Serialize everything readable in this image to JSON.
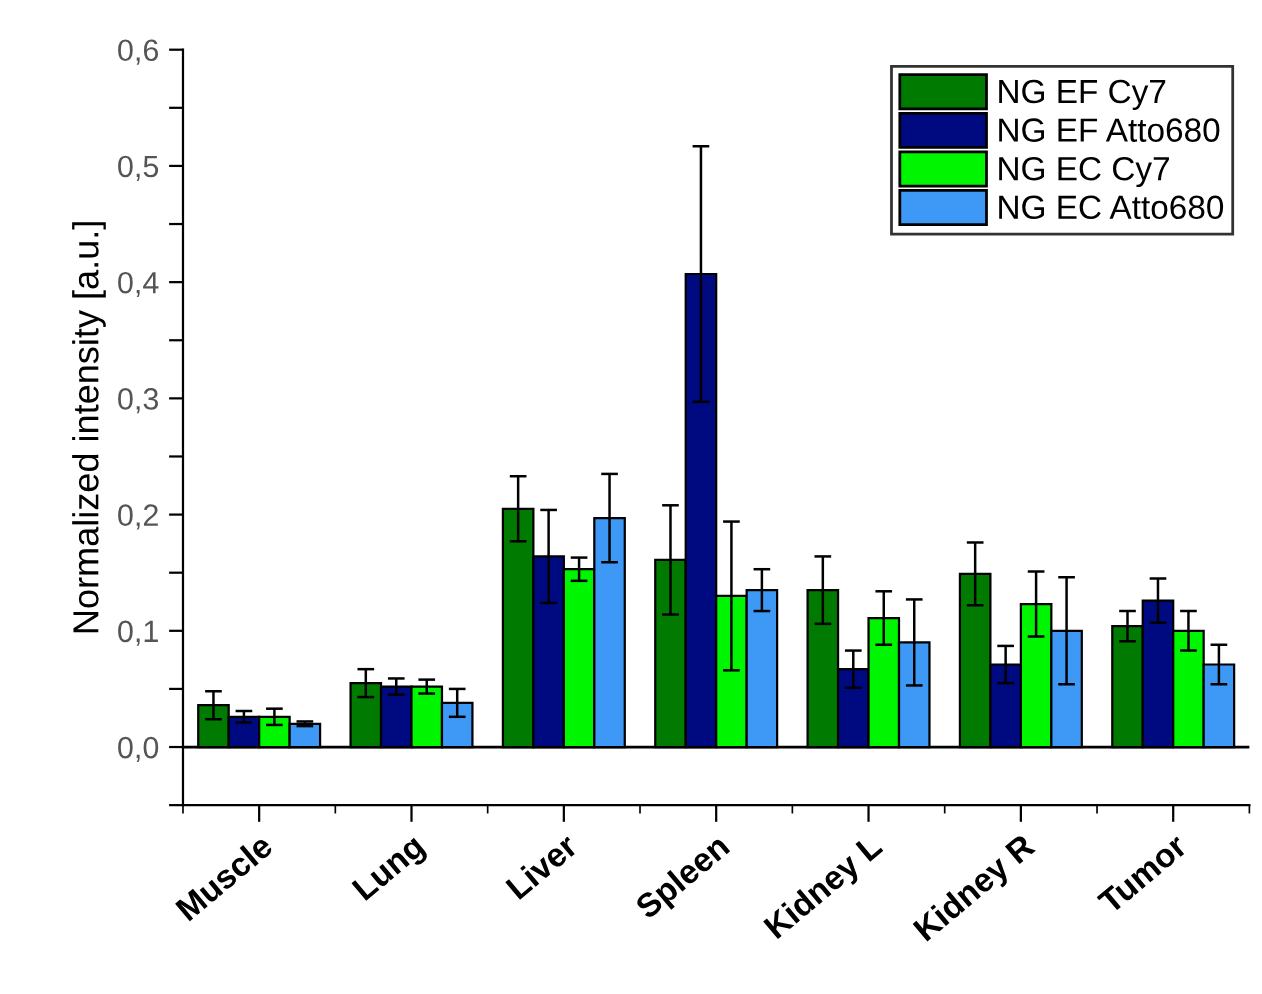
{
  "chart_data": {
    "type": "bar",
    "ylabel": "Normalized intensity [a.u.]",
    "categories": [
      "Muscle",
      "Lung",
      "Liver",
      "Spleen",
      "Kidney L",
      "Kidney R",
      "Tumor"
    ],
    "series": [
      {
        "name": "NG EF Cy7",
        "color": "#007a00",
        "values": [
          0.036,
          0.055,
          0.205,
          0.161,
          0.135,
          0.149,
          0.104
        ],
        "errors": [
          0.012,
          0.012,
          0.028,
          0.047,
          0.029,
          0.027,
          0.013
        ]
      },
      {
        "name": "NG EF Atto680",
        "color": "#000a80",
        "values": [
          0.026,
          0.052,
          0.164,
          0.407,
          0.067,
          0.071,
          0.126
        ],
        "errors": [
          0.005,
          0.007,
          0.04,
          0.11,
          0.016,
          0.016,
          0.019
        ]
      },
      {
        "name": "NG EC Cy7",
        "color": "#00f500",
        "values": [
          0.026,
          0.052,
          0.153,
          0.13,
          0.111,
          0.123,
          0.1
        ],
        "errors": [
          0.007,
          0.006,
          0.01,
          0.064,
          0.023,
          0.028,
          0.017
        ]
      },
      {
        "name": "NG EC Atto680",
        "color": "#3d99f5",
        "values": [
          0.02,
          0.038,
          0.197,
          0.135,
          0.09,
          0.1,
          0.071
        ],
        "errors": [
          0.002,
          0.012,
          0.038,
          0.018,
          0.037,
          0.046,
          0.017
        ]
      }
    ],
    "ylim": [
      -0.05,
      0.6
    ],
    "yticks": [
      {
        "value": -0.05,
        "label": null
      },
      {
        "value": 0.0,
        "label": "0,0"
      },
      {
        "value": 0.05,
        "label": null
      },
      {
        "value": 0.1,
        "label": "0,1"
      },
      {
        "value": 0.15,
        "label": null
      },
      {
        "value": 0.2,
        "label": "0,2"
      },
      {
        "value": 0.25,
        "label": null
      },
      {
        "value": 0.3,
        "label": "0,3"
      },
      {
        "value": 0.35,
        "label": null
      },
      {
        "value": 0.4,
        "label": "0,4"
      },
      {
        "value": 0.45,
        "label": null
      },
      {
        "value": 0.5,
        "label": "0,5"
      },
      {
        "value": 0.55,
        "label": null
      },
      {
        "value": 0.6,
        "label": "0,6"
      }
    ],
    "ref_lines": [
      {
        "axis": "y",
        "value": 0.0,
        "color": "#000000"
      }
    ],
    "grid": false,
    "legend": "top right"
  }
}
